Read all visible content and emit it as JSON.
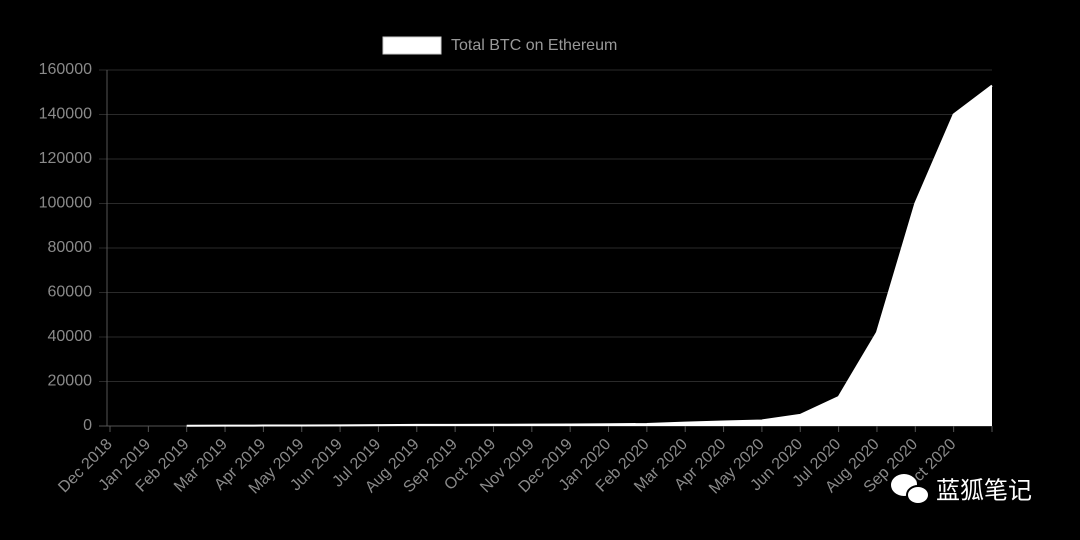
{
  "chart_data": {
    "type": "area",
    "legend": "Total BTC on Ethereum",
    "legend_position": "top",
    "color": "#ffffff",
    "grid": true,
    "categories": [
      "Dec 2018",
      "Jan 2019",
      "Feb 2019",
      "Mar 2019",
      "Apr 2019",
      "May 2019",
      "Jun 2019",
      "Jul 2019",
      "Aug 2019",
      "Sep 2019",
      "Oct 2019",
      "Nov 2019",
      "Dec 2019",
      "Jan 2020",
      "Feb 2020",
      "Mar 2020",
      "Apr 2020",
      "May 2020",
      "Jun 2020",
      "Jul 2020",
      "Aug 2020",
      "Sep 2020",
      "Oct 2020",
      null
    ],
    "values": [
      null,
      null,
      100,
      150,
      200,
      250,
      300,
      400,
      500,
      500,
      550,
      600,
      700,
      800,
      900,
      1500,
      2000,
      2500,
      5000,
      13000,
      42000,
      100000,
      140000,
      153000
    ],
    "ylim": [
      0,
      160000
    ],
    "yticks": [
      0,
      20000,
      40000,
      60000,
      80000,
      100000,
      120000,
      140000,
      160000
    ]
  },
  "watermark": "蓝狐笔记"
}
